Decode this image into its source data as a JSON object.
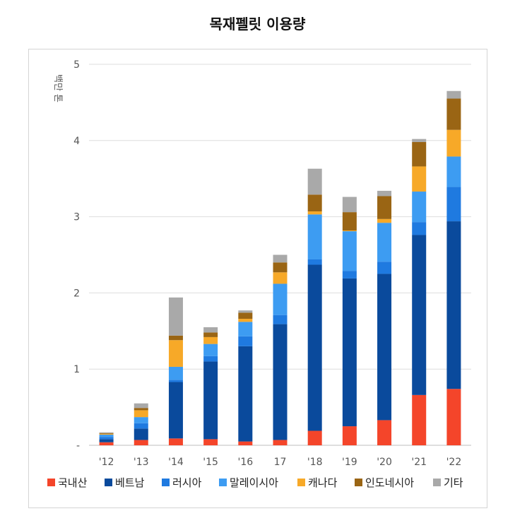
{
  "title": "목재펠릿 이용량",
  "chart_data": {
    "type": "bar",
    "stacked": true,
    "title": "목재펠릿 이용량",
    "ylabel": "백만 톤",
    "xlabel": "",
    "ylim": [
      0,
      5
    ],
    "yticks": [
      {
        "value": 0,
        "label": "-"
      },
      {
        "value": 1,
        "label": "1"
      },
      {
        "value": 2,
        "label": "2"
      },
      {
        "value": 3,
        "label": "3"
      },
      {
        "value": 4,
        "label": "4"
      },
      {
        "value": 5,
        "label": "5"
      }
    ],
    "grid": true,
    "legend": "bottom",
    "categories": [
      "'12",
      "'13",
      "'14",
      "'15",
      "'16",
      "17",
      "'18",
      "'19",
      "'20",
      "'21",
      "'22"
    ],
    "series": [
      {
        "name": "국내산",
        "color": "#f4452a",
        "values": [
          0.04,
          0.07,
          0.09,
          0.08,
          0.05,
          0.07,
          0.19,
          0.25,
          0.33,
          0.66,
          0.74
        ]
      },
      {
        "name": "베트남",
        "color": "#0a4a9c",
        "values": [
          0.04,
          0.15,
          0.74,
          1.02,
          1.25,
          1.52,
          2.18,
          1.94,
          1.92,
          2.1,
          2.2
        ]
      },
      {
        "name": "러시아",
        "color": "#1f7ae0",
        "values": [
          0.03,
          0.07,
          0.03,
          0.07,
          0.13,
          0.12,
          0.07,
          0.1,
          0.16,
          0.17,
          0.45
        ]
      },
      {
        "name": "말레이시아",
        "color": "#3d9cf2",
        "values": [
          0.03,
          0.08,
          0.17,
          0.16,
          0.19,
          0.41,
          0.59,
          0.52,
          0.51,
          0.4,
          0.4
        ]
      },
      {
        "name": "캐나다",
        "color": "#f7a928",
        "values": [
          0.01,
          0.09,
          0.35,
          0.09,
          0.04,
          0.15,
          0.04,
          0.01,
          0.05,
          0.33,
          0.35
        ]
      },
      {
        "name": "인도네시아",
        "color": "#9a6514",
        "values": [
          0.01,
          0.03,
          0.06,
          0.06,
          0.08,
          0.13,
          0.22,
          0.24,
          0.3,
          0.32,
          0.41
        ]
      },
      {
        "name": "기타",
        "color": "#a9a9a9",
        "values": [
          0.01,
          0.06,
          0.5,
          0.07,
          0.03,
          0.1,
          0.34,
          0.2,
          0.07,
          0.04,
          0.1
        ]
      }
    ]
  }
}
